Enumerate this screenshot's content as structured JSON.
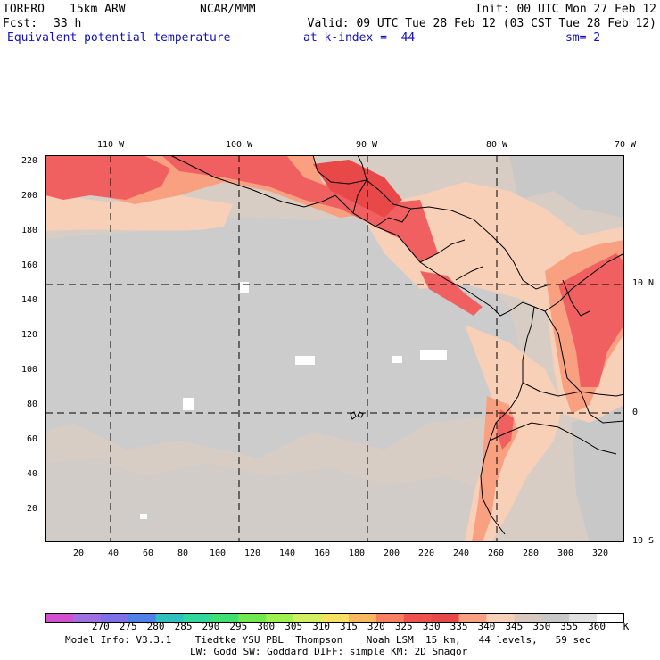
{
  "header": {
    "model": "TORERO",
    "resolution": "15km ARW",
    "center": "NCAR/MMM",
    "init": "Init: 00 UTC Mon 27 Feb 12",
    "fcst_label": "Fcst:",
    "fcst_value": "33 h",
    "valid": "Valid: 09 UTC Tue 28 Feb 12 (03 CST Tue 28 Feb 12)",
    "field": "Equivalent potential temperature",
    "level": "at k-index =  44",
    "smoothing": "sm= 2"
  },
  "map": {
    "longitude_labels": [
      "110 W",
      "100 W",
      "90 W",
      "80 W",
      "70 W"
    ],
    "latitude_labels": [
      "10 N",
      "0",
      "10 S"
    ],
    "y_ticks": [
      "220",
      "200",
      "180",
      "160",
      "140",
      "120",
      "100",
      "80",
      "60",
      "40",
      "20"
    ],
    "x_ticks": [
      "20",
      "40",
      "60",
      "80",
      "100",
      "120",
      "140",
      "160",
      "180",
      "200",
      "220",
      "240",
      "260",
      "280",
      "300",
      "320"
    ]
  },
  "colorbar": {
    "labels": [
      "270",
      "275",
      "280",
      "285",
      "290",
      "295",
      "300",
      "305",
      "310",
      "315",
      "320",
      "325",
      "330",
      "335",
      "340",
      "345",
      "350",
      "355",
      "360"
    ],
    "unit": "K",
    "colors": [
      "#d050d0",
      "#a070e0",
      "#8070e8",
      "#5080e8",
      "#30c0c0",
      "#30d8a0",
      "#40e070",
      "#70e850",
      "#a0f050",
      "#d0f060",
      "#f8e060",
      "#f8b860",
      "#f88060",
      "#f05050",
      "#e84848",
      "#f8a080",
      "#f8d0b8",
      "#d8c8c0",
      "#c8c8c8",
      "#e0e0e0",
      "#ffffff"
    ]
  },
  "footer": {
    "line1": "Model Info: V3.3.1    Tiedtke YSU PBL  Thompson    Noah LSM  15 km,   44 levels,   59 sec",
    "line2": "LW: Godd SW: Goddard DIFF: simple KM: 2D Smagor"
  }
}
